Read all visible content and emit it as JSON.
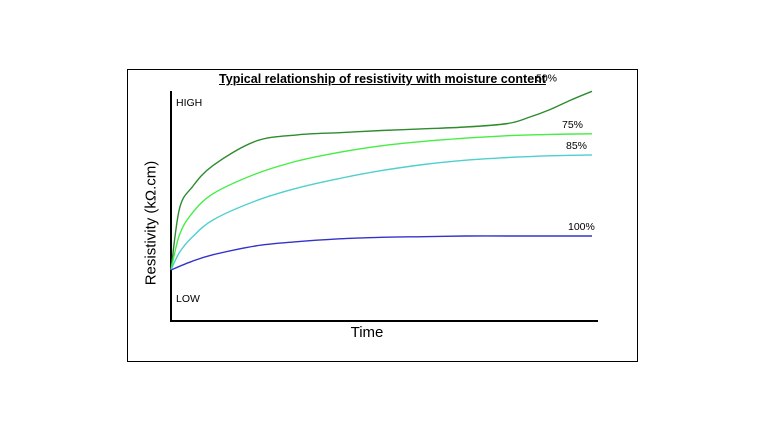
{
  "chart_data": {
    "type": "line",
    "title": "Typical relationship  of resistivity  with moisture content",
    "xlabel": "Time",
    "ylabel": "Resistivity  (kΩ.cm)",
    "y_extremes": {
      "high": "HIGH",
      "low": "LOW"
    },
    "xlim": [
      0,
      100
    ],
    "ylim": [
      0,
      100
    ],
    "grid": false,
    "legend": "none",
    "series": [
      {
        "name": "50%",
        "color": "#2e8b2e",
        "x": [
          0,
          2,
          5,
          10,
          20,
          30,
          40,
          50,
          60,
          70,
          80,
          85,
          90,
          95,
          100
        ],
        "y": [
          22,
          50,
          60,
          70,
          81,
          84,
          85,
          86,
          86.8,
          87.6,
          89.2,
          92,
          95.6,
          100,
          104
        ]
      },
      {
        "name": "75%",
        "color": "#44ee44",
        "x": [
          0,
          2,
          5,
          10,
          20,
          30,
          40,
          50,
          60,
          70,
          80,
          90,
          100
        ],
        "y": [
          22,
          38,
          48,
          57,
          66,
          72,
          76,
          79,
          81,
          82.5,
          83.6,
          84.2,
          84.5
        ]
      },
      {
        "name": "85%",
        "color": "#4fcfcf",
        "x": [
          0,
          2,
          5,
          10,
          20,
          30,
          40,
          50,
          60,
          70,
          80,
          90,
          100
        ],
        "y": [
          22,
          30,
          37,
          45,
          53.6,
          59.6,
          64,
          67.6,
          70.4,
          72.4,
          73.6,
          74.4,
          74.8
        ]
      },
      {
        "name": "100%",
        "color": "#3333cc",
        "x": [
          0,
          5,
          10,
          20,
          30,
          40,
          50,
          60,
          70,
          80,
          90,
          100
        ],
        "y": [
          22,
          26,
          29,
          33,
          35,
          36.3,
          37,
          37.3,
          37.6,
          37.6,
          37.6,
          37.6
        ]
      }
    ]
  }
}
